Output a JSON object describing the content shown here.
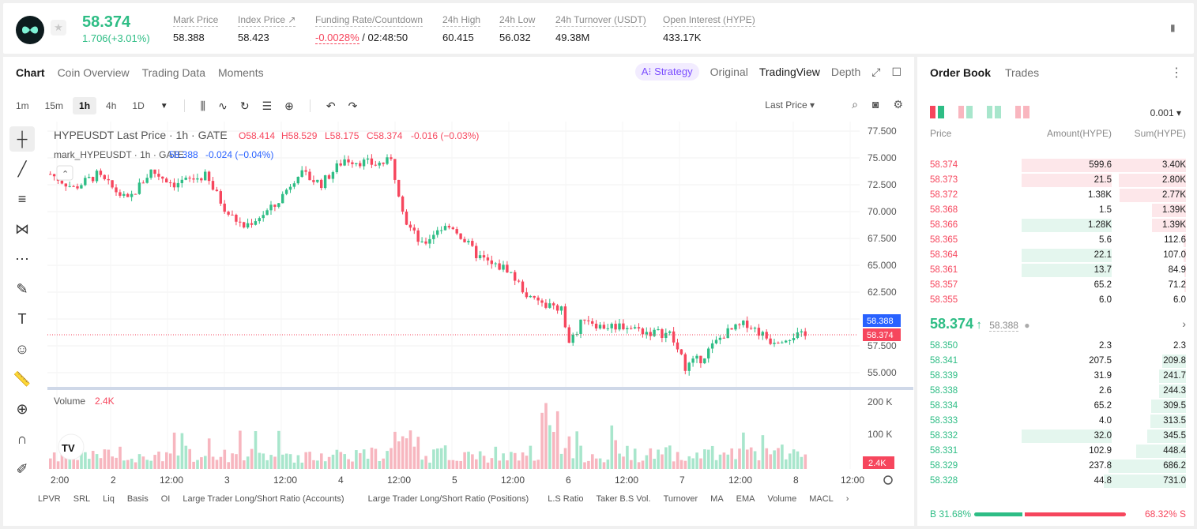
{
  "header": {
    "price": "58.374",
    "change": "1.706(+3.01%)",
    "stats": [
      {
        "label": "Mark Price",
        "value": "58.388"
      },
      {
        "label": "Index Price ↗",
        "value": "58.423"
      },
      {
        "label": "Funding Rate/Countdown",
        "value_red": "-0.0028%",
        "value": " / 02:48:50"
      },
      {
        "label": "24h High",
        "value": "60.415"
      },
      {
        "label": "24h Low",
        "value": "56.032"
      },
      {
        "label": "24h Turnover (USDT)",
        "value": "49.38M"
      },
      {
        "label": "Open Interest (HYPE)",
        "value": "433.17K"
      }
    ]
  },
  "chart_tabs": [
    "Chart",
    "Coin Overview",
    "Trading Data",
    "Moments"
  ],
  "view_tabs": {
    "strategy": "A⁝ Strategy",
    "original": "Original",
    "tradingview": "TradingView",
    "depth": "Depth"
  },
  "timeframes": [
    "1m",
    "15m",
    "1h",
    "4h",
    "1D"
  ],
  "active_timeframe": "1h",
  "last_price_select": "Last Price",
  "chart": {
    "legend_title": "HYPEUSDT Last Price · 1h · GATE",
    "ohlc": {
      "o": "O58.414",
      "h": "H58.529",
      "l": "L58.175",
      "c": "C58.374",
      "chg": "-0.016 (−0.03%)"
    },
    "mark_legend": "mark_HYPEUSDT · 1h · GATE",
    "mark_val": "58.388",
    "mark_chg": "-0.024 (−0.04%)",
    "volume_label": "Volume",
    "volume_val": "2.4K",
    "price_axis": [
      "77.500",
      "75.000",
      "72.500",
      "70.000",
      "67.500",
      "65.000",
      "62.500",
      "60.000",
      "57.500",
      "55.000"
    ],
    "price_tag_mark": "58.388",
    "price_tag_last": "58.374",
    "vol_axis": [
      "200 K",
      "100 K"
    ],
    "vol_tag": "2.4K",
    "time_axis": [
      "2:00",
      "2",
      "12:00",
      "3",
      "12:00",
      "4",
      "12:00",
      "5",
      "12:00",
      "6",
      "12:00",
      "7",
      "12:00",
      "8",
      "12:00"
    ],
    "watermark": "TV"
  },
  "indicators": [
    "LPVR",
    "SRL",
    "Liq",
    "Basis",
    "OI",
    "Large Trader Long/Short Ratio (Accounts)",
    "Large Trader Long/Short Ratio (Positions)",
    "L.S Ratio",
    "Taker B.S Vol.",
    "Turnover",
    "MA",
    "EMA",
    "Volume",
    "MACL"
  ],
  "orderbook": {
    "tabs": [
      "Order Book",
      "Trades"
    ],
    "precision": "0.001",
    "headers": {
      "price": "Price",
      "amount": "Amount(HYPE)",
      "sum": "Sum(HYPE)"
    },
    "asks": [
      {
        "price": "58.374",
        "amount": "599.6",
        "sum": "3.40K",
        "a_frac": 1.0,
        "s_frac": 1.0
      },
      {
        "price": "58.373",
        "amount": "21.5",
        "sum": "2.80K",
        "a_frac": 1.0,
        "s_frac": 0.82
      },
      {
        "price": "58.372",
        "amount": "1.38K",
        "sum": "2.77K",
        "a_frac": 0.0,
        "s_frac": 0.81
      },
      {
        "price": "58.368",
        "amount": "1.5",
        "sum": "1.39K",
        "a_frac": 0.0,
        "s_frac": 0.41
      },
      {
        "price": "58.366",
        "amount": "1.28K",
        "sum": "1.39K",
        "a_frac": 1.0,
        "s_frac": 0.41,
        "bid_color": true
      },
      {
        "price": "58.365",
        "amount": "5.6",
        "sum": "112.6",
        "a_frac": 0.0,
        "s_frac": 0.03
      },
      {
        "price": "58.364",
        "amount": "22.1",
        "sum": "107.0",
        "a_frac": 1.0,
        "s_frac": 0.03,
        "bid_color": true
      },
      {
        "price": "58.361",
        "amount": "13.7",
        "sum": "84.9",
        "a_frac": 1.0,
        "s_frac": 0.02,
        "bid_color": true
      },
      {
        "price": "58.357",
        "amount": "65.2",
        "sum": "71.2",
        "a_frac": 0.0,
        "s_frac": 0.02
      },
      {
        "price": "58.355",
        "amount": "6.0",
        "sum": "6.0",
        "a_frac": 0.0,
        "s_frac": 0.0
      }
    ],
    "mid_price": "58.374",
    "mid_arrow": "↑",
    "mid_mark": "58.388",
    "bids": [
      {
        "price": "58.350",
        "amount": "2.3",
        "sum": "2.3",
        "a_frac": 0.0,
        "s_frac": 0.0
      },
      {
        "price": "58.341",
        "amount": "207.5",
        "sum": "209.8",
        "a_frac": 0.0,
        "s_frac": 0.29
      },
      {
        "price": "58.339",
        "amount": "31.9",
        "sum": "241.7",
        "a_frac": 0.0,
        "s_frac": 0.33
      },
      {
        "price": "58.338",
        "amount": "2.6",
        "sum": "244.3",
        "a_frac": 0.0,
        "s_frac": 0.33
      },
      {
        "price": "58.334",
        "amount": "65.2",
        "sum": "309.5",
        "a_frac": 0.0,
        "s_frac": 0.42
      },
      {
        "price": "58.333",
        "amount": "4.0",
        "sum": "313.5",
        "a_frac": 0.0,
        "s_frac": 0.43
      },
      {
        "price": "58.332",
        "amount": "32.0",
        "sum": "345.5",
        "a_frac": 1.0,
        "s_frac": 0.47
      },
      {
        "price": "58.331",
        "amount": "102.9",
        "sum": "448.4",
        "a_frac": 0.0,
        "s_frac": 0.61
      },
      {
        "price": "58.329",
        "amount": "237.8",
        "sum": "686.2",
        "a_frac": 0.0,
        "s_frac": 0.94
      },
      {
        "price": "58.328",
        "amount": "44.8",
        "sum": "731.0",
        "a_frac": 0.0,
        "s_frac": 1.0
      }
    ],
    "buy_ratio": "B 31.68%",
    "sell_ratio": "68.32% S",
    "buy_frac": 0.3168
  },
  "colors": {
    "up": "#2ebd85",
    "down": "#f6465d",
    "accent": "#7b4dff",
    "mark_tag": "#2962ff"
  }
}
